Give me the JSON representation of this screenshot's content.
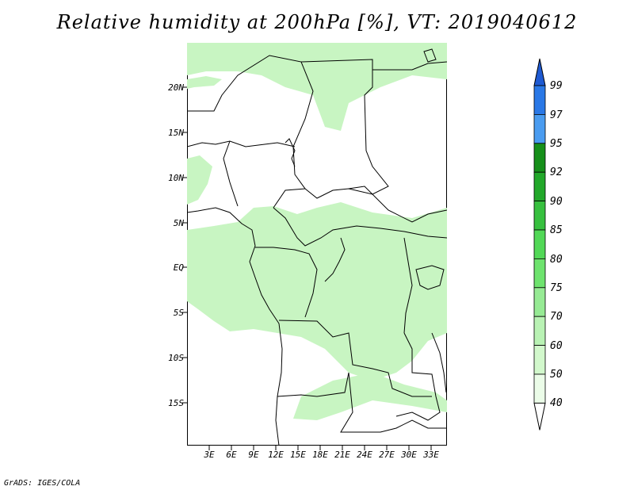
{
  "title": "Relative humidity at 200hPa [%], VT: 2019040612",
  "footer": "GrADS: IGES/COLA",
  "map": {
    "lat_labels": [
      "20N",
      "15N",
      "10N",
      "5N",
      "EQ",
      "5S",
      "10S",
      "15S"
    ],
    "lon_labels": [
      "3E",
      "6E",
      "9E",
      "12E",
      "15E",
      "18E",
      "21E",
      "24E",
      "27E",
      "30E",
      "33E"
    ]
  },
  "colorbar": {
    "levels": [
      "99",
      "97",
      "95",
      "92",
      "90",
      "85",
      "80",
      "75",
      "70",
      "60",
      "50",
      "40"
    ],
    "colors": [
      "#1e5ad2",
      "#2a78e6",
      "#4a9cf0",
      "#16901a",
      "#22a82a",
      "#37c03f",
      "#52d857",
      "#6ee36e",
      "#96ea94",
      "#b9f2b4",
      "#d2f8cc",
      "#ebfce8"
    ]
  },
  "humidity_field_colors": {
    "light": "#c8f5c2",
    "medium": "#b4efac"
  }
}
